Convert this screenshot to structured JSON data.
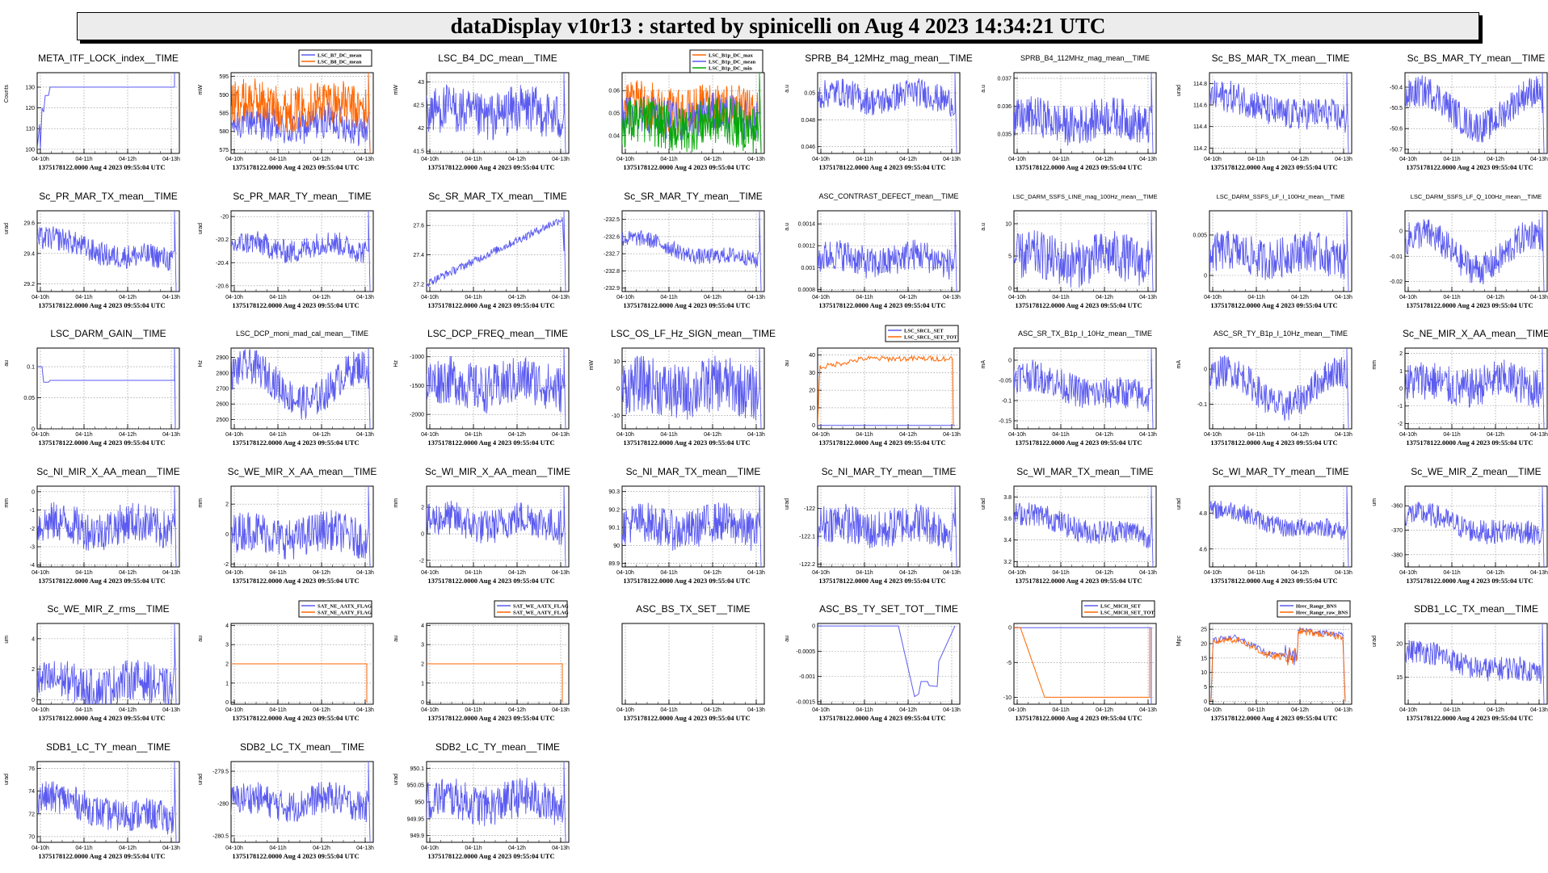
{
  "header": {
    "title": "dataDisplay v10r13 : started by spinicelli on Aug  4 2023 14:34:21 UTC"
  },
  "common": {
    "footer": "1375178122.0000 Aug 4 2023 09:55:04 UTC",
    "time_ticks": [
      "04-10h",
      "04-11h",
      "04-12h",
      "04-13h"
    ]
  },
  "chart_data": [
    {
      "type": "line",
      "title": "META_ITF_LOCK_index__TIME",
      "ylabel": "Counts",
      "yticks": [
        "100",
        "110",
        "120",
        "130"
      ],
      "ylim": [
        98,
        137
      ],
      "pattern": "lock",
      "series": [
        {
          "name": "",
          "color": "#5b5bf0"
        }
      ]
    },
    {
      "type": "line",
      "title": "",
      "ylabel": "mW",
      "yticks": [
        "575",
        "580",
        "585",
        "590",
        "595"
      ],
      "ylim": [
        574,
        596
      ],
      "legend": [
        "LSC_B7_DC_mean",
        "LSC_B8_DC_mean"
      ],
      "pattern": "bands",
      "series": [
        {
          "name": "LSC_B7_DC_mean",
          "color": "#5b5bf0",
          "level": 0.35,
          "amp": 0.22
        },
        {
          "name": "LSC_B8_DC_mean",
          "color": "#ff6600",
          "level": 0.6,
          "amp": 0.28
        }
      ]
    },
    {
      "type": "line",
      "title": "LSC_B4_DC_mean__TIME",
      "ylabel": "mW",
      "yticks": [
        "41.5",
        "42",
        "42.5",
        "43"
      ],
      "ylim": [
        41.45,
        43.2
      ],
      "pattern": "noise",
      "series": [
        {
          "name": "",
          "color": "#5b5bf0",
          "level": 0.5,
          "amp": 0.3
        }
      ]
    },
    {
      "type": "line",
      "title": "",
      "ylabel": "",
      "yticks": [
        "0.04",
        "0.05",
        "0.06"
      ],
      "ylim": [
        0.032,
        0.068
      ],
      "legend": [
        "LSC_B1p_DC_max",
        "LSC_B1p_DC_mean",
        "LSC_B1p_DC_min"
      ],
      "pattern": "bands",
      "series": [
        {
          "name": "LSC_B1p_DC_max",
          "color": "#ff6600",
          "level": 0.55,
          "amp": 0.3
        },
        {
          "name": "LSC_B1p_DC_mean",
          "color": "#5b5bf0",
          "level": 0.45,
          "amp": 0.25
        },
        {
          "name": "LSC_B1p_DC_min",
          "color": "#00aa00",
          "level": 0.35,
          "amp": 0.3
        }
      ]
    },
    {
      "type": "line",
      "title": "SPRB_B4_12MHz_mag_mean__TIME",
      "ylabel": "a.u",
      "yticks": [
        "0.046",
        "0.048",
        "0.05"
      ],
      "ylim": [
        0.0455,
        0.0515
      ],
      "pattern": "noise",
      "series": [
        {
          "name": "",
          "color": "#5b5bf0",
          "level": 0.7,
          "amp": 0.18
        }
      ]
    },
    {
      "type": "line",
      "title": "SPRB_B4_112MHz_mag_mean__TIME",
      "ylabel": "a.u",
      "yticks": [
        "0.035",
        "0.036",
        "0.037"
      ],
      "ylim": [
        0.0343,
        0.0372
      ],
      "pattern": "noise",
      "series": [
        {
          "name": "",
          "color": "#5b5bf0",
          "level": 0.4,
          "amp": 0.25
        }
      ]
    },
    {
      "type": "line",
      "title": "Sc_BS_MAR_TX_mean__TIME",
      "ylabel": "urad",
      "yticks": [
        "114.2",
        "114.4",
        "114.6",
        "114.8"
      ],
      "ylim": [
        114.15,
        114.9
      ],
      "pattern": "trenddown",
      "series": [
        {
          "name": "",
          "color": "#5b5bf0",
          "level": 0.55,
          "amp": 0.2
        }
      ]
    },
    {
      "type": "line",
      "title": "Sc_BS_MAR_TY_mean__TIME",
      "ylabel": "",
      "yticks": [
        "-50.7",
        "-50.6",
        "-50.5",
        "-50.4"
      ],
      "ylim": [
        -50.72,
        -50.33
      ],
      "pattern": "wave",
      "series": [
        {
          "name": "",
          "color": "#5b5bf0",
          "level": 0.55,
          "amp": 0.2
        }
      ]
    },
    {
      "type": "line",
      "title": "Sc_PR_MAR_TX_mean__TIME",
      "ylabel": "urad",
      "yticks": [
        "29.2",
        "29.4",
        "29.6"
      ],
      "ylim": [
        29.15,
        29.68
      ],
      "pattern": "trenddown",
      "series": [
        {
          "name": "",
          "color": "#5b5bf0",
          "level": 0.5,
          "amp": 0.15
        }
      ]
    },
    {
      "type": "line",
      "title": "Sc_PR_MAR_TY_mean__TIME",
      "ylabel": "urad",
      "yticks": [
        "-20.6",
        "-20.4",
        "-20.2",
        "-20"
      ],
      "ylim": [
        -20.65,
        -19.95
      ],
      "pattern": "noise",
      "series": [
        {
          "name": "",
          "color": "#5b5bf0",
          "level": 0.55,
          "amp": 0.15
        }
      ]
    },
    {
      "type": "line",
      "title": "Sc_SR_MAR_TX_mean__TIME",
      "ylabel": "",
      "yticks": [
        "27.2",
        "27.4",
        "27.6"
      ],
      "ylim": [
        27.15,
        27.7
      ],
      "pattern": "trendup",
      "series": [
        {
          "name": "",
          "color": "#5b5bf0",
          "level": 0.5,
          "amp": 0.05
        }
      ]
    },
    {
      "type": "line",
      "title": "Sc_SR_MAR_TY_mean__TIME",
      "ylabel": "",
      "yticks": [
        "-232.9",
        "-232.8",
        "-232.7",
        "-232.6",
        "-232.5"
      ],
      "ylim": [
        -232.92,
        -232.45
      ],
      "pattern": "trenddown",
      "series": [
        {
          "name": "",
          "color": "#5b5bf0",
          "level": 0.5,
          "amp": 0.1
        }
      ]
    },
    {
      "type": "line",
      "title": "ASC_CONTRAST_DEFECT_mean__TIME",
      "ylabel": "a.u",
      "yticks": [
        "0.0008",
        "0.001",
        "0.0012",
        "0.0014"
      ],
      "ylim": [
        0.00078,
        0.00152
      ],
      "pattern": "noise",
      "series": [
        {
          "name": "",
          "color": "#5b5bf0",
          "level": 0.4,
          "amp": 0.2
        }
      ]
    },
    {
      "type": "line",
      "title": "LSC_DARM_SSFS_LINE_mag_100Hz_mean__TIME",
      "ylabel": "a.u",
      "yticks": [
        "0",
        "5",
        "10"
      ],
      "ylim": [
        -0.5,
        12
      ],
      "pattern": "noise",
      "series": [
        {
          "name": "",
          "color": "#5b5bf0",
          "level": 0.4,
          "amp": 0.3
        }
      ]
    },
    {
      "type": "line",
      "title": "LSC_DARM_SSFS_LF_I_100Hz_mean__TIME",
      "ylabel": "",
      "yticks": [
        "0",
        "0.005"
      ],
      "ylim": [
        -0.002,
        0.008
      ],
      "pattern": "noise",
      "series": [
        {
          "name": "",
          "color": "#5b5bf0",
          "level": 0.45,
          "amp": 0.25
        }
      ]
    },
    {
      "type": "line",
      "title": "LSC_DARM_SSFS_LF_Q_100Hz_mean__TIME",
      "ylabel": "",
      "yticks": [
        "-0.02",
        "-0.01",
        "0"
      ],
      "ylim": [
        -0.024,
        0.008
      ],
      "pattern": "wave",
      "series": [
        {
          "name": "",
          "color": "#5b5bf0",
          "level": 0.5,
          "amp": 0.2
        }
      ]
    },
    {
      "type": "line",
      "title": "LSC_DARM_GAIN__TIME",
      "ylabel": "au",
      "yticks": [
        "0",
        "0.05",
        "0.1"
      ],
      "ylim": [
        0,
        0.13
      ],
      "pattern": "gain",
      "series": [
        {
          "name": "",
          "color": "#5b5bf0"
        }
      ]
    },
    {
      "type": "line",
      "title": "LSC_DCP_moni_mad_cal_mean__TIME",
      "ylabel": "Hz",
      "yticks": [
        "2500",
        "2600",
        "2700",
        "2800",
        "2900"
      ],
      "ylim": [
        2440,
        2960
      ],
      "pattern": "wave",
      "series": [
        {
          "name": "",
          "color": "#5b5bf0",
          "level": 0.55,
          "amp": 0.22
        }
      ]
    },
    {
      "type": "line",
      "title": "LSC_DCP_FREQ_mean__TIME",
      "ylabel": "Hz",
      "yticks": [
        "-2000",
        "-1500",
        "-1000"
      ],
      "ylim": [
        -2250,
        -850
      ],
      "pattern": "noise",
      "series": [
        {
          "name": "",
          "color": "#5b5bf0",
          "level": 0.55,
          "amp": 0.3
        }
      ]
    },
    {
      "type": "line",
      "title": "LSC_OS_LF_Hz_SIGN_mean__TIME",
      "ylabel": "mW",
      "yticks": [
        "-10",
        "0",
        "10"
      ],
      "ylim": [
        -15,
        15
      ],
      "pattern": "noise",
      "series": [
        {
          "name": "",
          "color": "#5b5bf0",
          "level": 0.5,
          "amp": 0.35
        }
      ]
    },
    {
      "type": "line",
      "title": "",
      "ylabel": "au",
      "yticks": [
        "0",
        "10",
        "20",
        "30",
        "40"
      ],
      "ylim": [
        -2,
        44
      ],
      "legend": [
        "LSC_SRCL_SET",
        "LSC_SRCL_SET_TOT"
      ],
      "pattern": "srcl",
      "series": [
        {
          "name": "LSC_SRCL_SET",
          "color": "#5b5bf0"
        },
        {
          "name": "LSC_SRCL_SET_TOT",
          "color": "#ff6600"
        }
      ]
    },
    {
      "type": "line",
      "title": "ASC_SR_TX_B1p_I_10Hz_mean__TIME",
      "ylabel": "mA",
      "yticks": [
        "-0.15",
        "-0.1",
        "-0.05",
        "0"
      ],
      "ylim": [
        -0.17,
        0.03
      ],
      "pattern": "trenddown",
      "series": [
        {
          "name": "",
          "color": "#5b5bf0",
          "level": 0.5,
          "amp": 0.2
        }
      ]
    },
    {
      "type": "line",
      "title": "ASC_SR_TY_B1p_I_10Hz_mean__TIME",
      "ylabel": "mA",
      "yticks": [
        "-0.1",
        "0"
      ],
      "ylim": [
        -0.17,
        0.06
      ],
      "pattern": "wave",
      "series": [
        {
          "name": "",
          "color": "#5b5bf0",
          "level": 0.5,
          "amp": 0.2
        }
      ]
    },
    {
      "type": "line",
      "title": "Sc_NE_MIR_X_AA_mean__TIME",
      "ylabel": "mm",
      "yticks": [
        "-2",
        "-1",
        "0",
        "1",
        "2"
      ],
      "ylim": [
        -2.3,
        2.3
      ],
      "pattern": "noise",
      "series": [
        {
          "name": "",
          "color": "#5b5bf0",
          "level": 0.55,
          "amp": 0.25
        }
      ]
    },
    {
      "type": "line",
      "title": "Sc_NI_MIR_X_AA_mean__TIME",
      "ylabel": "mm",
      "yticks": [
        "-4",
        "-3",
        "-2",
        "-1",
        "0"
      ],
      "ylim": [
        -4.1,
        0.3
      ],
      "pattern": "noise",
      "series": [
        {
          "name": "",
          "color": "#5b5bf0",
          "level": 0.5,
          "amp": 0.25
        }
      ]
    },
    {
      "type": "line",
      "title": "Sc_WE_MIR_X_AA_mean__TIME",
      "ylabel": "mm",
      "yticks": [
        "-2",
        "0",
        "2"
      ],
      "ylim": [
        -2.2,
        3.2
      ],
      "pattern": "noise",
      "series": [
        {
          "name": "",
          "color": "#5b5bf0",
          "level": 0.4,
          "amp": 0.25
        }
      ]
    },
    {
      "type": "line",
      "title": "Sc_WI_MIR_X_AA_mean__TIME",
      "ylabel": "mm",
      "yticks": [
        "-2",
        "0",
        "2"
      ],
      "ylim": [
        -2.5,
        3.6
      ],
      "pattern": "noise",
      "series": [
        {
          "name": "",
          "color": "#5b5bf0",
          "level": 0.55,
          "amp": 0.22
        }
      ]
    },
    {
      "type": "line",
      "title": "Sc_NI_MAR_TX_mean__TIME",
      "ylabel": "",
      "yticks": [
        "89.9",
        "90",
        "90.1",
        "90.2",
        "90.3"
      ],
      "ylim": [
        89.88,
        90.33
      ],
      "pattern": "noise",
      "series": [
        {
          "name": "",
          "color": "#5b5bf0",
          "level": 0.5,
          "amp": 0.25
        }
      ]
    },
    {
      "type": "line",
      "title": "Sc_NI_MAR_TY_mean__TIME",
      "ylabel": "urad",
      "yticks": [
        "-122.2",
        "-122.1",
        "-122"
      ],
      "ylim": [
        -122.21,
        -121.92
      ],
      "pattern": "noise",
      "series": [
        {
          "name": "",
          "color": "#5b5bf0",
          "level": 0.5,
          "amp": 0.25
        }
      ]
    },
    {
      "type": "line",
      "title": "Sc_WI_MAR_TX_mean__TIME",
      "ylabel": "urad",
      "yticks": [
        "3.2",
        "3.4",
        "3.6",
        "3.8"
      ],
      "ylim": [
        3.15,
        3.9
      ],
      "pattern": "trenddown",
      "series": [
        {
          "name": "",
          "color": "#5b5bf0",
          "level": 0.5,
          "amp": 0.15
        }
      ]
    },
    {
      "type": "line",
      "title": "Sc_WI_MAR_TY_mean__TIME",
      "ylabel": "urad",
      "yticks": [
        "4.6",
        "4.8"
      ],
      "ylim": [
        4.5,
        4.95
      ],
      "pattern": "trenddown",
      "series": [
        {
          "name": "",
          "color": "#5b5bf0",
          "level": 0.55,
          "amp": 0.12
        }
      ]
    },
    {
      "type": "line",
      "title": "Sc_WE_MIR_Z_mean__TIME",
      "ylabel": "um",
      "yticks": [
        "-380",
        "-370",
        "-360"
      ],
      "ylim": [
        -385,
        -352
      ],
      "pattern": "trenddown",
      "series": [
        {
          "name": "",
          "color": "#5b5bf0",
          "level": 0.5,
          "amp": 0.15
        }
      ]
    },
    {
      "type": "line",
      "title": "Sc_WE_MIR_Z_rms__TIME",
      "ylabel": "um",
      "yticks": [
        "0",
        "2",
        "4"
      ],
      "ylim": [
        -0.3,
        5
      ],
      "pattern": "noise",
      "series": [
        {
          "name": "",
          "color": "#5b5bf0",
          "level": 0.25,
          "amp": 0.25
        }
      ]
    },
    {
      "type": "line",
      "title": "",
      "ylabel": "au",
      "yticks": [
        "0",
        "1",
        "2",
        "3",
        "4"
      ],
      "ylim": [
        -0.1,
        4.1
      ],
      "legend": [
        "SAT_NE_AATX_FLAG",
        "SAT_NE_AATY_FLAG"
      ],
      "pattern": "flag",
      "series": [
        {
          "name": "SAT_NE_AATX_FLAG",
          "color": "#5b5bf0"
        },
        {
          "name": "SAT_NE_AATY_FLAG",
          "color": "#ff6600"
        }
      ]
    },
    {
      "type": "line",
      "title": "",
      "ylabel": "au",
      "yticks": [
        "0",
        "1",
        "2",
        "3",
        "4"
      ],
      "ylim": [
        -0.1,
        4.1
      ],
      "legend": [
        "SAT_WE_AATX_FLAG",
        "SAT_WE_AATY_FLAG"
      ],
      "pattern": "flag",
      "series": [
        {
          "name": "SAT_WE_AATX_FLAG",
          "color": "#5b5bf0"
        },
        {
          "name": "SAT_WE_AATY_FLAG",
          "color": "#ff6600"
        }
      ]
    },
    {
      "type": "line",
      "title": "ASC_BS_TX_SET__TIME",
      "ylabel": "",
      "yticks": [],
      "ylim": [
        0,
        1
      ],
      "pattern": "empty",
      "series": []
    },
    {
      "type": "line",
      "title": "ASC_BS_TY_SET_TOT__TIME",
      "ylabel": "au",
      "yticks": [
        "-0.0015",
        "-0.001",
        "-0.0005",
        "0"
      ],
      "ylim": [
        -0.00155,
        5e-05
      ],
      "pattern": "bsty",
      "series": [
        {
          "name": "",
          "color": "#5b5bf0"
        }
      ]
    },
    {
      "type": "line",
      "title": "",
      "ylabel": "",
      "yticks": [
        "-10",
        "-5",
        "0"
      ],
      "ylim": [
        -11,
        0.6
      ],
      "legend": [
        "LSC_MICH_SET",
        "LSC_MICH_SET_TOT"
      ],
      "pattern": "mich",
      "series": [
        {
          "name": "LSC_MICH_SET",
          "color": "#5b5bf0"
        },
        {
          "name": "LSC_MICH_SET_TOT",
          "color": "#ff6600"
        }
      ]
    },
    {
      "type": "line",
      "title": "",
      "ylabel": "Mpc",
      "yticks": [
        "0",
        "5",
        "10",
        "15",
        "20",
        "25"
      ],
      "ylim": [
        -1,
        27
      ],
      "legend": [
        "Hrec_Range_BNS",
        "Hrec_Range_raw_BNS"
      ],
      "pattern": "range",
      "series": [
        {
          "name": "Hrec_Range_BNS",
          "color": "#5b5bf0"
        },
        {
          "name": "Hrec_Range_raw_BNS",
          "color": "#ff6600"
        }
      ]
    },
    {
      "type": "line",
      "title": "SDB1_LC_TX_mean__TIME",
      "ylabel": "urad",
      "yticks": [
        "15",
        "20"
      ],
      "ylim": [
        11,
        23
      ],
      "pattern": "trenddown",
      "series": [
        {
          "name": "",
          "color": "#5b5bf0",
          "level": 0.5,
          "amp": 0.15
        }
      ]
    },
    {
      "type": "line",
      "title": "SDB1_LC_TY_mean__TIME",
      "ylabel": "urad",
      "yticks": [
        "70",
        "72",
        "74",
        "76"
      ],
      "ylim": [
        69.5,
        76.6
      ],
      "pattern": "trenddown",
      "series": [
        {
          "name": "",
          "color": "#5b5bf0",
          "level": 0.4,
          "amp": 0.2
        }
      ]
    },
    {
      "type": "line",
      "title": "SDB2_LC_TX_mean__TIME",
      "ylabel": "urad",
      "yticks": [
        "-280.5",
        "-280",
        "-279.5"
      ],
      "ylim": [
        -280.6,
        -279.35
      ],
      "pattern": "noise",
      "series": [
        {
          "name": "",
          "color": "#5b5bf0",
          "level": 0.5,
          "amp": 0.2
        }
      ]
    },
    {
      "type": "line",
      "title": "SDB2_LC_TY_mean__TIME",
      "ylabel": "urad",
      "yticks": [
        "949.9",
        "949.95",
        "950",
        "950.05",
        "950.1"
      ],
      "ylim": [
        949.88,
        950.12
      ],
      "pattern": "noise",
      "series": [
        {
          "name": "",
          "color": "#5b5bf0",
          "level": 0.5,
          "amp": 0.25
        }
      ]
    }
  ]
}
